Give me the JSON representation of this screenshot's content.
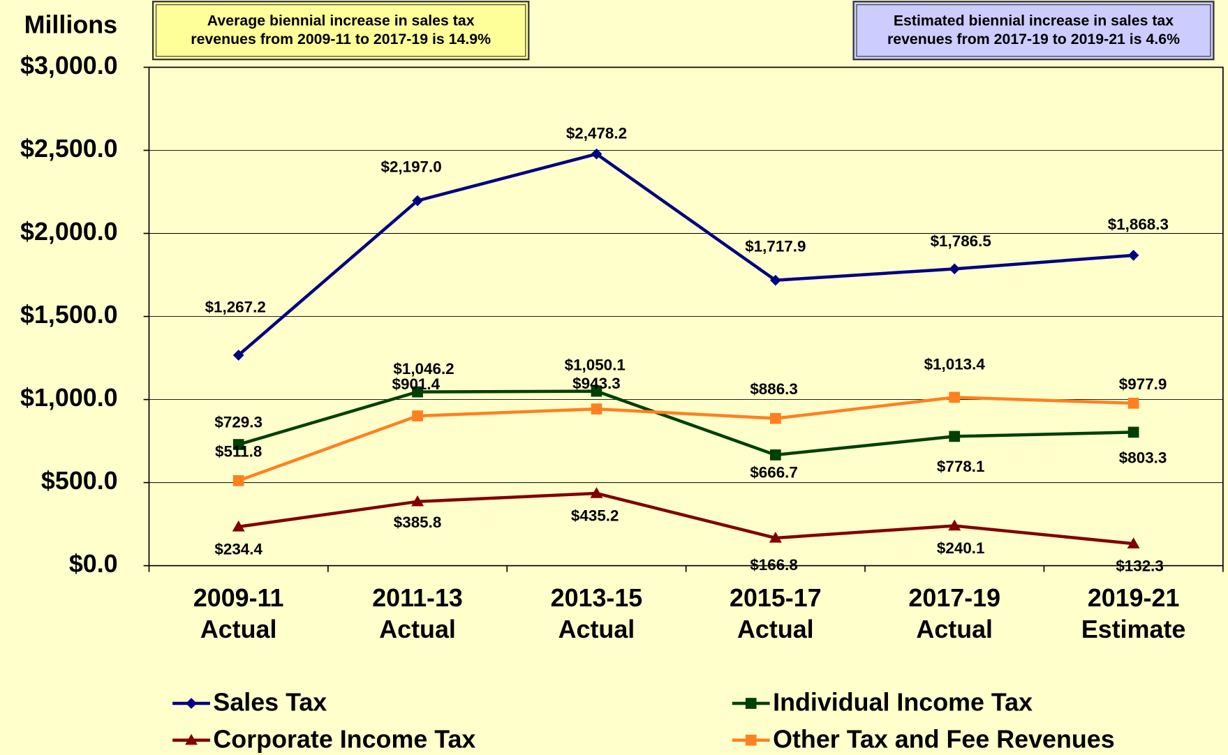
{
  "chart_data": {
    "type": "line",
    "y_axis_label": "Millions",
    "annotations": [
      "Average  biennial  increase  in  sales  tax revenues from 2009-11 to 2017-19 is 14.9%",
      "Estimated biennial increase in sales tax revenues from 2017-19 to 2019-21 is 4.6%"
    ],
    "categories": [
      "2009-11 Actual",
      "2011-13 Actual",
      "2013-15 Actual",
      "2015-17 Actual",
      "2017-19 Actual",
      "2019-21 Estimate"
    ],
    "ylim": [
      0,
      3000
    ],
    "yticks": [
      {
        "value": 0,
        "label": "$0.0"
      },
      {
        "value": 500,
        "label": "$500.0"
      },
      {
        "value": 1000,
        "label": "$1,000.0"
      },
      {
        "value": 1500,
        "label": "$1,500.0"
      },
      {
        "value": 2000,
        "label": "$2,000.0"
      },
      {
        "value": 2500,
        "label": "$2,500.0"
      },
      {
        "value": 3000,
        "label": "$3,000.0"
      }
    ],
    "grid": true,
    "series": [
      {
        "name": "Sales Tax",
        "color": "#000080",
        "marker": "diamond",
        "values": [
          1267.2,
          2197.0,
          2478.2,
          1717.9,
          1786.5,
          1868.3
        ],
        "value_labels": [
          "$1,267.2",
          "$2,197.0",
          "$2,478.2",
          "$1,717.9",
          "$1,786.5",
          "$1,868.3"
        ]
      },
      {
        "name": "Individual Income Tax",
        "color": "#004000",
        "marker": "square",
        "values": [
          729.3,
          1046.2,
          1050.1,
          666.7,
          778.1,
          803.3
        ],
        "value_labels": [
          "$729.3",
          "$1,046.2",
          "$1,050.1",
          "$666.7",
          "$778.1",
          "$803.3"
        ]
      },
      {
        "name": "Corporate Income Tax",
        "color": "#800000",
        "marker": "triangle",
        "values": [
          234.4,
          385.8,
          435.2,
          166.8,
          240.1,
          132.3
        ],
        "value_labels": [
          "$234.4",
          "$385.8",
          "$435.2",
          "$166.8",
          "$240.1",
          "$132.3"
        ]
      },
      {
        "name": "Other Tax and Fee Revenues",
        "color": "#ff8020",
        "marker": "square",
        "values": [
          511.8,
          901.4,
          943.3,
          886.3,
          1013.4,
          977.9
        ],
        "value_labels": [
          "$511.8",
          "$901.4",
          "$943.3",
          "$886.3",
          "$1,013.4",
          "$977.9"
        ]
      }
    ]
  }
}
